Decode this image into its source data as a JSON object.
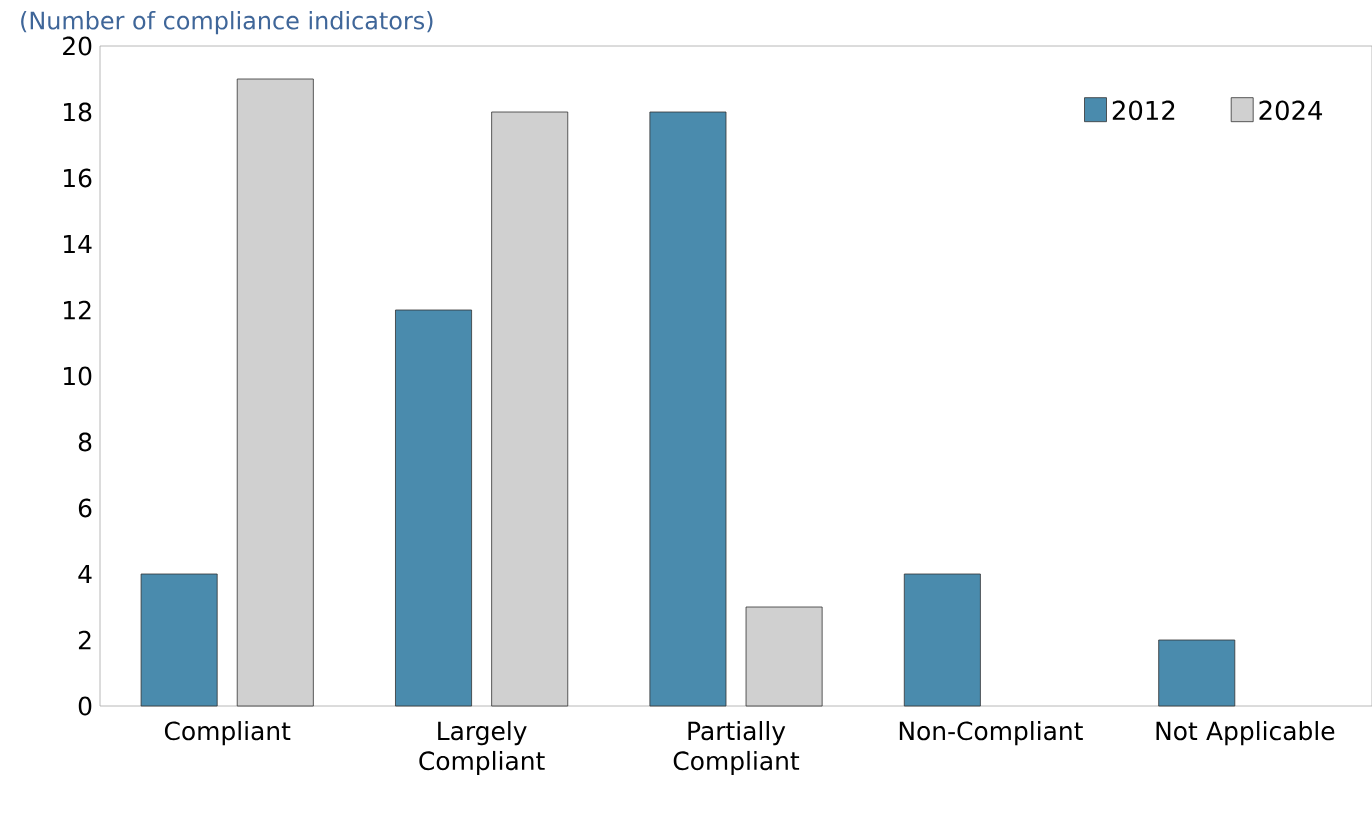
{
  "chart_data": {
    "type": "bar",
    "subtitle": "(Number of compliance indicators)",
    "categories": [
      "Compliant",
      "Largely Compliant",
      "Partially Compliant",
      "Non-Compliant",
      "Not Applicable"
    ],
    "series": [
      {
        "name": "2012",
        "color": "#4a8bad",
        "values": [
          4,
          12,
          18,
          4,
          2
        ]
      },
      {
        "name": "2024",
        "color": "#d0d0d0",
        "values": [
          19,
          18,
          3,
          0,
          0
        ]
      }
    ],
    "ylim": [
      0,
      20
    ],
    "yticks": [
      0,
      2,
      4,
      6,
      8,
      10,
      12,
      14,
      16,
      18,
      20
    ],
    "grid": false,
    "legend": "top right"
  }
}
